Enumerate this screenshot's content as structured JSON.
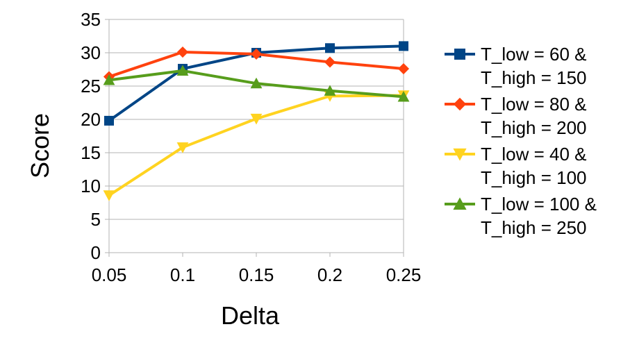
{
  "chart_data": {
    "type": "line",
    "title": "",
    "xlabel": "Delta",
    "ylabel": "Score",
    "x": [
      "0.05",
      "0.1",
      "0.15",
      "0.2",
      "0.25"
    ],
    "ylim": [
      0,
      35
    ],
    "yticks": [
      "0",
      "5",
      "10",
      "15",
      "20",
      "25",
      "30",
      "35"
    ],
    "grid": "horizontal",
    "legend_position": "right",
    "series": [
      {
        "name": "T_low = 60 & T_high = 150",
        "legend_lines": [
          "T_low = 60 &",
          "T_high = 150"
        ],
        "color": "#004586",
        "marker": "square",
        "values": [
          19.8,
          27.6,
          30.0,
          30.7,
          31.0
        ]
      },
      {
        "name": "T_low = 80 & T_high = 200",
        "legend_lines": [
          "T_low = 80 &",
          "T_high = 200"
        ],
        "color": "#FF420E",
        "marker": "diamond",
        "values": [
          26.4,
          30.1,
          29.8,
          28.6,
          27.6
        ]
      },
      {
        "name": "T_low = 40 & T_high = 100",
        "legend_lines": [
          "T_low = 40 &",
          "T_high = 100"
        ],
        "color": "#FFD320",
        "marker": "triangle-down",
        "values": [
          8.6,
          15.8,
          20.1,
          23.5,
          23.6
        ]
      },
      {
        "name": "T_low = 100 & T_high = 250",
        "legend_lines": [
          "T_low = 100 &",
          "T_high = 250"
        ],
        "color": "#579D1C",
        "marker": "triangle-up",
        "values": [
          25.9,
          27.3,
          25.4,
          24.3,
          23.4
        ]
      }
    ]
  }
}
